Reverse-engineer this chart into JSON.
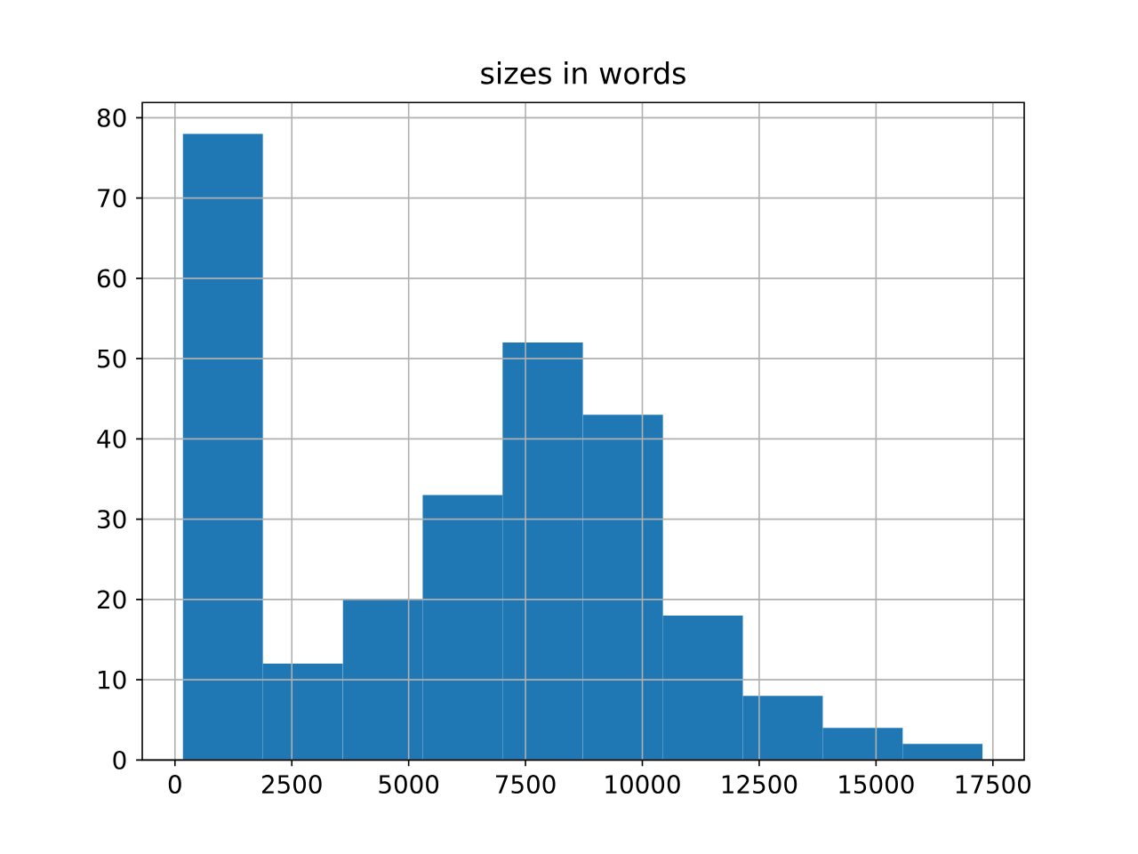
{
  "chart_data": {
    "type": "histogram",
    "title": "sizes in words",
    "bins": [
      170,
      1880,
      3590,
      5300,
      7010,
      8730,
      10440,
      12150,
      13860,
      15570,
      17280
    ],
    "values": [
      78,
      12,
      20,
      33,
      52,
      43,
      18,
      8,
      4,
      2
    ],
    "color": "#1f77b4",
    "xlim": [
      -700,
      18170
    ],
    "ylim": [
      0,
      81.9
    ],
    "xticks": [
      0,
      2500,
      5000,
      7500,
      10000,
      12500,
      15000,
      17500
    ],
    "yticks": [
      0,
      10,
      20,
      30,
      40,
      50,
      60,
      70,
      80
    ],
    "grid": true
  }
}
